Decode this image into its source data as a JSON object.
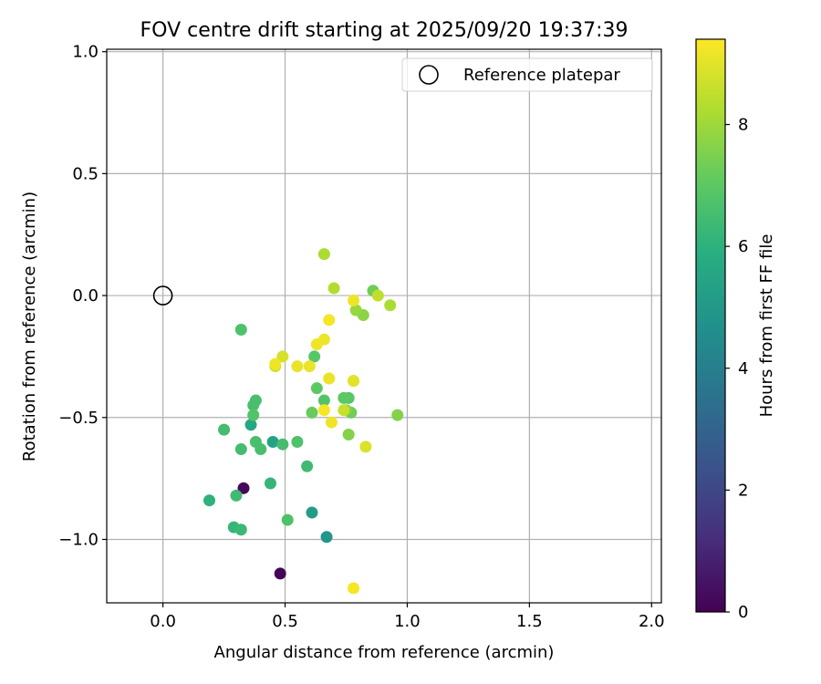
{
  "chart_data": {
    "type": "scatter",
    "title": "FOV centre drift starting at 2025/09/20 19:37:39",
    "xlabel": "Angular distance from reference (arcmin)",
    "ylabel": "Rotation from reference (arcmin)",
    "xlim": [
      -0.23,
      2.04
    ],
    "ylim": [
      -1.26,
      1.01
    ],
    "xticks": [
      0.0,
      0.5,
      1.0,
      1.5,
      2.0
    ],
    "xtick_labels": [
      "0.0",
      "0.5",
      "1.0",
      "1.5",
      "2.0"
    ],
    "yticks": [
      1.0,
      0.5,
      0.0,
      -0.5,
      -1.0
    ],
    "ytick_labels": [
      "1.0",
      "0.5",
      "0.0",
      "−0.5",
      "−1.0"
    ],
    "grid": true,
    "legend": {
      "placement": "top-right",
      "label": "Reference platepar"
    },
    "reference": {
      "x": 0.0,
      "y": 0.0
    },
    "colorbar": {
      "label": "Hours from first FF file",
      "colormap": "viridis",
      "min": 0,
      "max": 9.4,
      "ticks": [
        0,
        2,
        4,
        6,
        8
      ],
      "tick_labels": [
        "0",
        "2",
        "4",
        "6",
        "8"
      ]
    },
    "points": [
      {
        "x": 0.48,
        "y": -1.14,
        "t": 0.1
      },
      {
        "x": 0.33,
        "y": -0.79,
        "t": 0.2
      },
      {
        "x": 0.67,
        "y": -0.99,
        "t": 4.9
      },
      {
        "x": 0.61,
        "y": -0.89,
        "t": 5.2
      },
      {
        "x": 0.45,
        "y": -0.6,
        "t": 5.4
      },
      {
        "x": 0.36,
        "y": -0.53,
        "t": 5.6
      },
      {
        "x": 0.19,
        "y": -0.84,
        "t": 6.0
      },
      {
        "x": 0.29,
        "y": -0.95,
        "t": 6.2
      },
      {
        "x": 0.32,
        "y": -0.96,
        "t": 6.3
      },
      {
        "x": 0.3,
        "y": -0.82,
        "t": 6.4
      },
      {
        "x": 0.44,
        "y": -0.77,
        "t": 6.2
      },
      {
        "x": 0.51,
        "y": -0.92,
        "t": 6.7
      },
      {
        "x": 0.59,
        "y": -0.7,
        "t": 6.4
      },
      {
        "x": 0.32,
        "y": -0.63,
        "t": 6.5
      },
      {
        "x": 0.38,
        "y": -0.6,
        "t": 6.6
      },
      {
        "x": 0.4,
        "y": -0.63,
        "t": 6.6
      },
      {
        "x": 0.49,
        "y": -0.61,
        "t": 6.5
      },
      {
        "x": 0.55,
        "y": -0.6,
        "t": 6.7
      },
      {
        "x": 0.25,
        "y": -0.55,
        "t": 6.5
      },
      {
        "x": 0.37,
        "y": -0.49,
        "t": 6.8
      },
      {
        "x": 0.37,
        "y": -0.45,
        "t": 6.6
      },
      {
        "x": 0.38,
        "y": -0.43,
        "t": 6.6
      },
      {
        "x": 0.32,
        "y": -0.14,
        "t": 6.7
      },
      {
        "x": 0.62,
        "y": -0.25,
        "t": 6.9
      },
      {
        "x": 0.63,
        "y": -0.38,
        "t": 7.0
      },
      {
        "x": 0.66,
        "y": -0.43,
        "t": 6.8
      },
      {
        "x": 0.61,
        "y": -0.48,
        "t": 7.2
      },
      {
        "x": 0.74,
        "y": -0.42,
        "t": 7.0
      },
      {
        "x": 0.76,
        "y": -0.42,
        "t": 6.9
      },
      {
        "x": 0.77,
        "y": -0.48,
        "t": 7.3
      },
      {
        "x": 0.75,
        "y": -0.47,
        "t": 7.6
      },
      {
        "x": 0.76,
        "y": -0.57,
        "t": 7.6
      },
      {
        "x": 0.96,
        "y": -0.49,
        "t": 7.6
      },
      {
        "x": 0.86,
        "y": 0.02,
        "t": 7.3
      },
      {
        "x": 0.78,
        "y": -0.35,
        "t": 7.9
      },
      {
        "x": 0.79,
        "y": -0.06,
        "t": 7.9
      },
      {
        "x": 0.82,
        "y": -0.08,
        "t": 7.7
      },
      {
        "x": 0.66,
        "y": 0.17,
        "t": 8.2
      },
      {
        "x": 0.7,
        "y": 0.03,
        "t": 8.3
      },
      {
        "x": 0.88,
        "y": 0.0,
        "t": 8.5
      },
      {
        "x": 0.93,
        "y": -0.04,
        "t": 8.2
      },
      {
        "x": 0.46,
        "y": -0.29,
        "t": 8.8
      },
      {
        "x": 0.49,
        "y": -0.25,
        "t": 8.8
      },
      {
        "x": 0.46,
        "y": -0.28,
        "t": 9.2
      },
      {
        "x": 0.55,
        "y": -0.29,
        "t": 9.1
      },
      {
        "x": 0.6,
        "y": -0.29,
        "t": 9.1
      },
      {
        "x": 0.63,
        "y": -0.2,
        "t": 9.2
      },
      {
        "x": 0.66,
        "y": -0.18,
        "t": 9.2
      },
      {
        "x": 0.68,
        "y": -0.1,
        "t": 9.3
      },
      {
        "x": 0.78,
        "y": -0.02,
        "t": 9.2
      },
      {
        "x": 0.68,
        "y": -0.34,
        "t": 9.1
      },
      {
        "x": 0.78,
        "y": -0.35,
        "t": 9.0
      },
      {
        "x": 0.66,
        "y": -0.47,
        "t": 9.3
      },
      {
        "x": 0.69,
        "y": -0.52,
        "t": 9.2
      },
      {
        "x": 0.74,
        "y": -0.47,
        "t": 8.6
      },
      {
        "x": 0.83,
        "y": -0.62,
        "t": 8.9
      },
      {
        "x": 0.78,
        "y": -1.2,
        "t": 9.3
      }
    ]
  }
}
